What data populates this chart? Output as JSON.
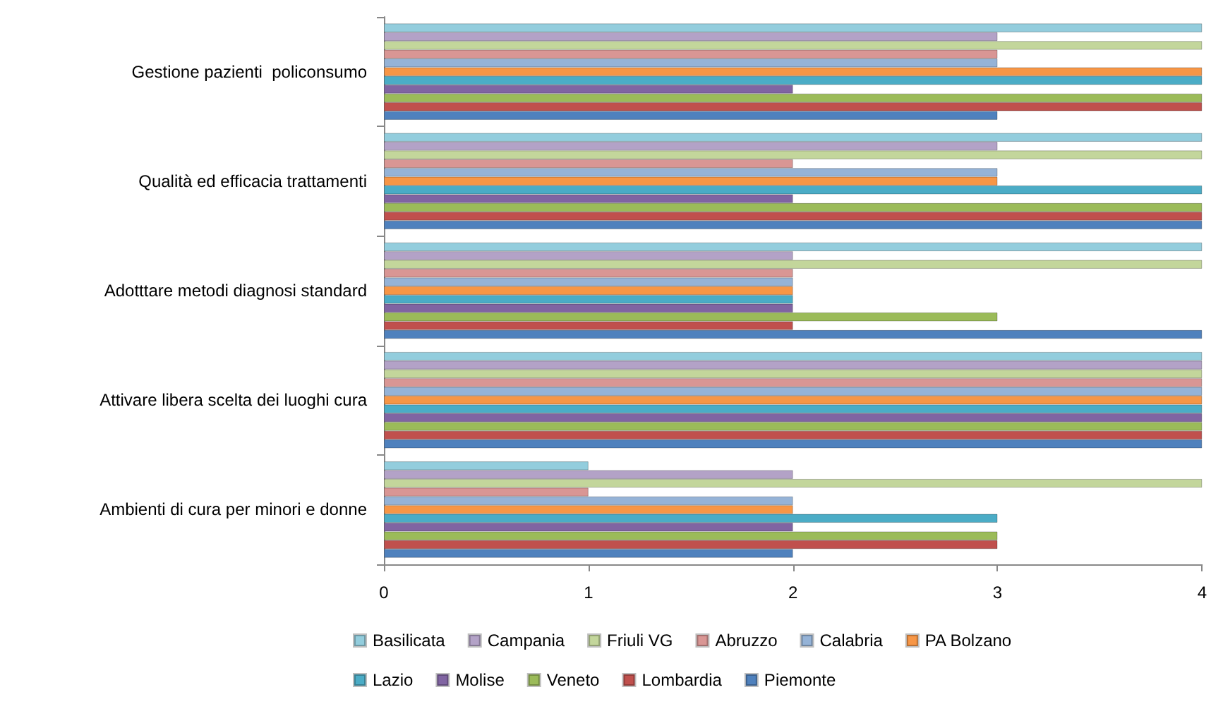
{
  "chart_data": {
    "type": "bar",
    "orientation": "horizontal",
    "categories": [
      "Gestione pazienti  policonsumo",
      "Qualità ed efficacia trattamenti",
      "Adotttare metodi diagnosi standard",
      "Attivare libera scelta dei luoghi cura",
      "Ambienti di cura per minori e donne"
    ],
    "xlim": [
      0,
      4
    ],
    "xticks": [
      0,
      1,
      2,
      3,
      4
    ],
    "grid": false,
    "legend": "bottom",
    "series": [
      {
        "name": "Basilicata",
        "color": "#93cddd",
        "values": [
          4,
          4,
          4,
          4,
          1
        ]
      },
      {
        "name": "Campania",
        "color": "#b3a2c7",
        "values": [
          3,
          3,
          2,
          4,
          2
        ]
      },
      {
        "name": "Friuli VG",
        "color": "#c3d69b",
        "values": [
          4,
          4,
          4,
          4,
          4
        ]
      },
      {
        "name": "Abruzzo",
        "color": "#d99694",
        "values": [
          3,
          2,
          2,
          4,
          1
        ]
      },
      {
        "name": "Calabria",
        "color": "#95b3d7",
        "values": [
          3,
          3,
          2,
          4,
          2
        ]
      },
      {
        "name": "PA Bolzano",
        "color": "#f79646",
        "values": [
          4,
          3,
          2,
          4,
          2
        ]
      },
      {
        "name": "Lazio",
        "color": "#4bacc6",
        "values": [
          4,
          4,
          2,
          4,
          3
        ]
      },
      {
        "name": "Molise",
        "color": "#8064a2",
        "values": [
          2,
          2,
          2,
          4,
          2
        ]
      },
      {
        "name": "Veneto",
        "color": "#9bbb59",
        "values": [
          4,
          4,
          3,
          4,
          3
        ]
      },
      {
        "name": "Lombardia",
        "color": "#c0504d",
        "values": [
          4,
          4,
          2,
          4,
          3
        ]
      },
      {
        "name": "Piemonte",
        "color": "#4f81bd",
        "values": [
          3,
          4,
          4,
          4,
          2
        ]
      }
    ]
  }
}
